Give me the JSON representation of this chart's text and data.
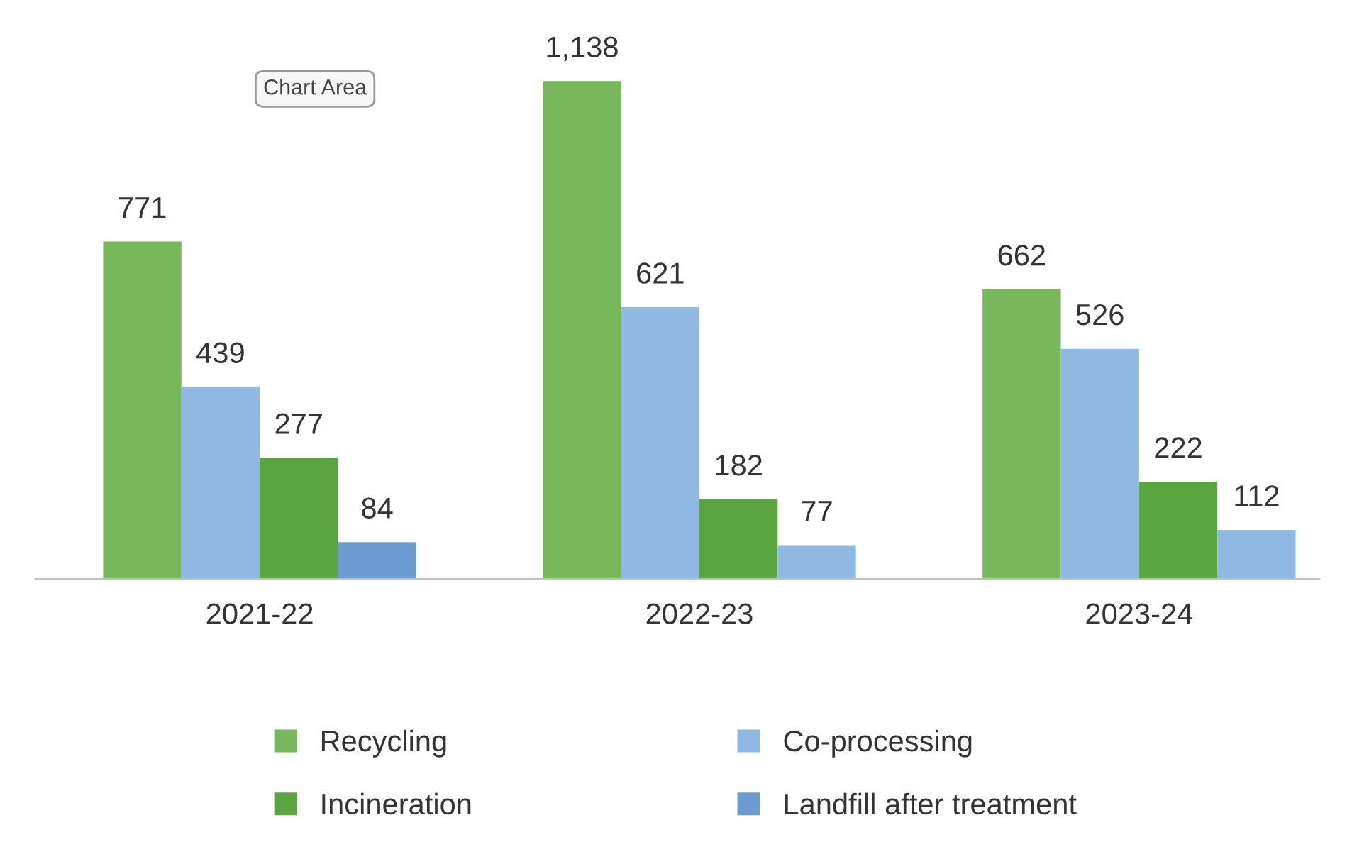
{
  "chart_data": {
    "type": "bar",
    "categories": [
      "2021-22",
      "2022-23",
      "2023-24"
    ],
    "series": [
      {
        "name": "Recycling",
        "color": "#77b85c",
        "values": [
          771,
          1138,
          662
        ],
        "value_labels": [
          "771",
          "1,138",
          "662"
        ]
      },
      {
        "name": "Co-processing",
        "color": "#8fb9e2",
        "values": [
          439,
          621,
          526
        ]
      },
      {
        "name": "Incineration",
        "color": "#5aa540",
        "values": [
          277,
          182,
          222
        ]
      },
      {
        "name": "Landfill after treatment",
        "color": "#6b9bd0",
        "colors": [
          "#6b9bd0",
          "#8fb9e2",
          "#8fb9e2"
        ],
        "values": [
          84,
          77,
          112
        ]
      }
    ],
    "data_labels": true,
    "legend": "bottom",
    "grid": false,
    "annotations": [
      "Chart Area"
    ]
  }
}
